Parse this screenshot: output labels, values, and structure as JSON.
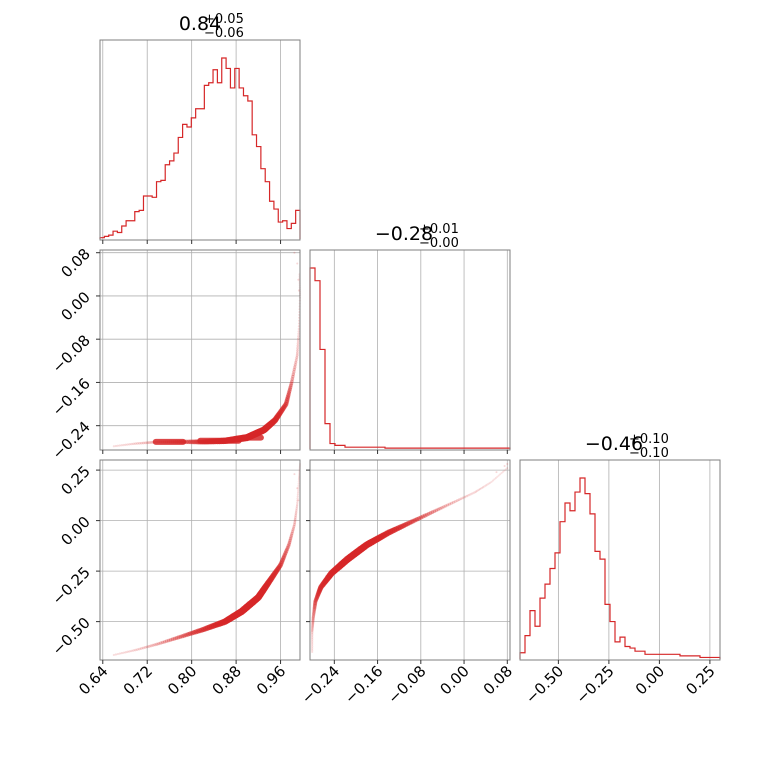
{
  "colors": {
    "series": "#d62728",
    "frame": "#7f7f7f",
    "grid": "#b0b0b0"
  },
  "chart_data": {
    "type": "corner",
    "grid": true,
    "titles": [
      {
        "panel": "p1-hist",
        "median": "0.84",
        "plus": "+0.05",
        "minus": "−0.06"
      },
      {
        "panel": "p2-hist",
        "median": "−0.28",
        "plus": "+0.01",
        "minus": "−0.00"
      },
      {
        "panel": "p3-hist",
        "median": "−0.46",
        "plus": "+0.10",
        "minus": "−0.10"
      }
    ],
    "axes": {
      "p1": {
        "range": [
          0.635,
          0.995
        ],
        "ticks": [
          0.64,
          0.72,
          0.8,
          0.88,
          0.96
        ],
        "tick_labels": [
          "0.64",
          "0.72",
          "0.80",
          "0.88",
          "0.96"
        ]
      },
      "p2": {
        "range": [
          -0.285,
          0.085
        ],
        "ticks": [
          -0.24,
          -0.16,
          -0.08,
          0.0,
          0.08
        ],
        "tick_labels": [
          "−0.24",
          "−0.16",
          "−0.08",
          "0.00",
          "0.08"
        ]
      },
      "p3": {
        "range": [
          -0.69,
          0.3
        ],
        "ticks": [
          -0.5,
          -0.25,
          0.0,
          0.25
        ],
        "tick_labels": [
          "−0.50",
          "−0.25",
          "0.00",
          "0.25"
        ]
      }
    },
    "histograms": {
      "p1": {
        "edges": [
          0.635,
          0.995
        ],
        "counts": [
          1,
          2,
          3,
          6,
          5,
          10,
          14,
          14,
          21,
          22,
          33,
          33,
          32,
          44,
          45,
          57,
          60,
          66,
          78,
          88,
          86,
          93,
          100,
          100,
          118,
          120,
          130,
          120,
          139,
          131,
          116,
          131,
          116,
          110,
          106,
          80,
          71,
          54,
          44,
          29,
          23,
          13,
          14,
          8,
          12,
          22
        ]
      },
      "p2": {
        "edges": [
          -0.285,
          0.085
        ],
        "counts": [
          100,
          93,
          55,
          14,
          3,
          2,
          2,
          1,
          1,
          1,
          1,
          1,
          1,
          1,
          1,
          0.5,
          0.5,
          0.5,
          0.5,
          0.5,
          0.5,
          0.5,
          0.5,
          0.5,
          0.5,
          0.5,
          0.5,
          0.5,
          0.5,
          0.5,
          0.5,
          0.5,
          0.5,
          0.5,
          0.5,
          0.5,
          0.5,
          0.5,
          0.5,
          0.5
        ]
      },
      "p3": {
        "edges": [
          -0.69,
          0.3
        ],
        "counts": [
          4,
          15,
          31,
          21,
          39,
          48,
          58,
          68,
          88,
          100,
          95,
          107,
          116,
          106,
          93,
          69,
          64,
          35,
          24,
          11,
          14,
          8,
          7,
          5,
          5,
          3,
          3,
          3,
          3,
          3,
          3,
          3,
          2,
          2,
          2,
          2,
          1,
          1,
          1,
          1
        ]
      }
    },
    "scatter": [
      {
        "panel": "p1-vs-p2",
        "x_param": "p1",
        "y_param": "p2",
        "path": [
          [
            0.66,
            -0.278
          ],
          [
            0.7,
            -0.273
          ],
          [
            0.74,
            -0.27
          ],
          [
            0.78,
            -0.27
          ],
          [
            0.82,
            -0.27
          ],
          [
            0.86,
            -0.268
          ],
          [
            0.9,
            -0.262
          ],
          [
            0.93,
            -0.248
          ],
          [
            0.95,
            -0.23
          ],
          [
            0.97,
            -0.2
          ],
          [
            0.98,
            -0.16
          ],
          [
            0.99,
            -0.11
          ],
          [
            0.993,
            -0.06
          ],
          [
            0.995,
            0.0
          ],
          [
            0.994,
            0.04
          ]
        ],
        "dense_spans": [
          [
            0.73,
            0.79,
            -0.27
          ],
          [
            0.81,
            0.89,
            -0.268
          ],
          [
            0.89,
            0.93,
            -0.262
          ]
        ],
        "sparse_points": [
          [
            0.985,
            0.08
          ],
          [
            0.99,
            0.06
          ],
          [
            0.992,
            0.03
          ],
          [
            0.993,
            0.01
          ]
        ]
      },
      {
        "panel": "p1-vs-p3",
        "x_param": "p1",
        "y_param": "p3",
        "path": [
          [
            0.66,
            -0.665
          ],
          [
            0.7,
            -0.64
          ],
          [
            0.74,
            -0.61
          ],
          [
            0.78,
            -0.575
          ],
          [
            0.82,
            -0.54
          ],
          [
            0.86,
            -0.5
          ],
          [
            0.89,
            -0.45
          ],
          [
            0.92,
            -0.38
          ],
          [
            0.94,
            -0.3
          ],
          [
            0.96,
            -0.22
          ],
          [
            0.975,
            -0.12
          ],
          [
            0.985,
            -0.02
          ],
          [
            0.99,
            0.08
          ],
          [
            0.993,
            0.2
          ],
          [
            0.995,
            0.28
          ]
        ],
        "dense_range": [
          0.72,
          0.94
        ],
        "sparse_points": [
          [
            0.985,
            0.23
          ],
          [
            0.99,
            0.16
          ],
          [
            0.992,
            0.1
          ]
        ]
      },
      {
        "panel": "p2-vs-p3",
        "x_param": "p2",
        "y_param": "p3",
        "path": [
          [
            -0.281,
            -0.65
          ],
          [
            -0.281,
            -0.55
          ],
          [
            -0.279,
            -0.48
          ],
          [
            -0.275,
            -0.4
          ],
          [
            -0.265,
            -0.33
          ],
          [
            -0.245,
            -0.26
          ],
          [
            -0.215,
            -0.19
          ],
          [
            -0.18,
            -0.12
          ],
          [
            -0.14,
            -0.06
          ],
          [
            -0.1,
            -0.01
          ],
          [
            -0.06,
            0.04
          ],
          [
            -0.02,
            0.09
          ],
          [
            0.02,
            0.14
          ],
          [
            0.05,
            0.19
          ],
          [
            0.08,
            0.26
          ]
        ],
        "dense_range": [
          -0.65,
          -0.25
        ],
        "sparse_points": [
          [
            0.06,
            0.24
          ],
          [
            0.075,
            0.27
          ],
          [
            0.08,
            0.28
          ]
        ]
      }
    ]
  }
}
